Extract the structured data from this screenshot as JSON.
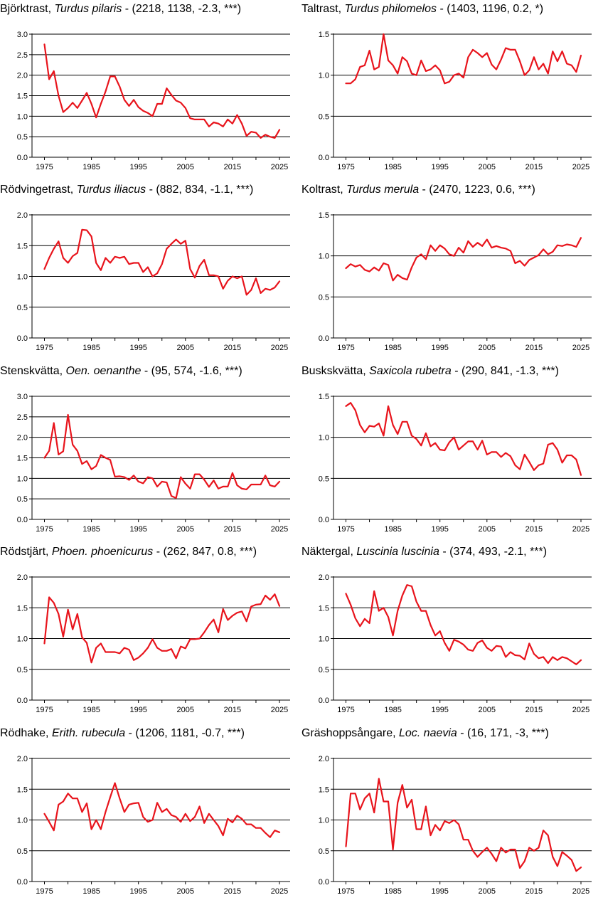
{
  "line_color": "#e8141c",
  "chart_data": [
    {
      "type": "line",
      "title_name": "Björktrast",
      "title_species": "Turdus pilaris",
      "title_stats": "- (2218, 1138, -2.3, ***)",
      "ylim": [
        0,
        3.0
      ],
      "yticks": [
        "0.0",
        "0.5",
        "1.0",
        "1.5",
        "2.0",
        "2.5",
        "3.0"
      ],
      "xticks": [
        "1975",
        "1985",
        "1995",
        "2005",
        "2015",
        "2025"
      ],
      "grid": true,
      "x": [
        1975,
        1976,
        1977,
        1978,
        1979,
        1980,
        1981,
        1982,
        1983,
        1984,
        1985,
        1986,
        1987,
        1988,
        1989,
        1990,
        1991,
        1992,
        1993,
        1994,
        1995,
        1996,
        1997,
        1998,
        1999,
        2000,
        2001,
        2002,
        2003,
        2004,
        2005,
        2006,
        2007,
        2008,
        2009,
        2010,
        2011,
        2012,
        2013,
        2014,
        2015,
        2016,
        2017,
        2018,
        2019,
        2020,
        2021,
        2022,
        2023,
        2024,
        2025
      ],
      "values": [
        2.75,
        1.9,
        2.1,
        1.5,
        1.1,
        1.2,
        1.33,
        1.2,
        1.38,
        1.57,
        1.3,
        0.97,
        1.3,
        1.6,
        1.97,
        1.97,
        1.72,
        1.4,
        1.25,
        1.4,
        1.22,
        1.13,
        1.08,
        1.0,
        1.3,
        1.3,
        1.68,
        1.52,
        1.38,
        1.33,
        1.2,
        0.95,
        0.92,
        0.92,
        0.92,
        0.75,
        0.85,
        0.82,
        0.75,
        0.92,
        0.82,
        1.03,
        0.82,
        0.52,
        0.62,
        0.6,
        0.47,
        0.55,
        0.5,
        0.47,
        0.67
      ]
    },
    {
      "type": "line",
      "title_name": "Taltrast",
      "title_species": "Turdus philomelos",
      "title_stats": "- (1403, 1196, 0.2, *)",
      "ylim": [
        0,
        1.5
      ],
      "yticks": [
        "0.0",
        "0.5",
        "1.0",
        "1.5"
      ],
      "xticks": [
        "1975",
        "1985",
        "1995",
        "2005",
        "2015",
        "2025"
      ],
      "grid": true,
      "x": [
        1975,
        1976,
        1977,
        1978,
        1979,
        1980,
        1981,
        1982,
        1983,
        1984,
        1985,
        1986,
        1987,
        1988,
        1989,
        1990,
        1991,
        1992,
        1993,
        1994,
        1995,
        1996,
        1997,
        1998,
        1999,
        2000,
        2001,
        2002,
        2003,
        2004,
        2005,
        2006,
        2007,
        2008,
        2009,
        2010,
        2011,
        2012,
        2013,
        2014,
        2015,
        2016,
        2017,
        2018,
        2019,
        2020,
        2021,
        2022,
        2023,
        2024,
        2025
      ],
      "values": [
        0.9,
        0.9,
        0.95,
        1.1,
        1.12,
        1.3,
        1.07,
        1.1,
        1.5,
        1.18,
        1.12,
        1.02,
        1.22,
        1.17,
        1.02,
        1.0,
        1.18,
        1.05,
        1.07,
        1.12,
        1.06,
        0.9,
        0.92,
        1.0,
        1.02,
        0.97,
        1.22,
        1.31,
        1.27,
        1.22,
        1.27,
        1.13,
        1.07,
        1.19,
        1.33,
        1.31,
        1.31,
        1.17,
        1.0,
        1.06,
        1.22,
        1.07,
        1.14,
        1.02,
        1.29,
        1.17,
        1.29,
        1.14,
        1.12,
        1.04,
        1.24
      ]
    },
    {
      "type": "line",
      "title_name": "Rödvingetrast",
      "title_species": "Turdus iliacus",
      "title_stats": "- (882, 834, -1.1, ***)",
      "ylim": [
        0,
        2.0
      ],
      "yticks": [
        "0.0",
        "0.5",
        "1.0",
        "1.5",
        "2.0"
      ],
      "xticks": [
        "1975",
        "1985",
        "1995",
        "2005",
        "2015",
        "2025"
      ],
      "grid": true,
      "x": [
        1975,
        1976,
        1977,
        1978,
        1979,
        1980,
        1981,
        1982,
        1983,
        1984,
        1985,
        1986,
        1987,
        1988,
        1989,
        1990,
        1991,
        1992,
        1993,
        1994,
        1995,
        1996,
        1997,
        1998,
        1999,
        2000,
        2001,
        2002,
        2003,
        2004,
        2005,
        2006,
        2007,
        2008,
        2009,
        2010,
        2011,
        2012,
        2013,
        2014,
        2015,
        2016,
        2017,
        2018,
        2019,
        2020,
        2021,
        2022,
        2023,
        2024,
        2025
      ],
      "values": [
        1.12,
        1.3,
        1.45,
        1.57,
        1.3,
        1.22,
        1.33,
        1.38,
        1.76,
        1.75,
        1.65,
        1.22,
        1.1,
        1.3,
        1.22,
        1.32,
        1.3,
        1.32,
        1.2,
        1.22,
        1.22,
        1.07,
        1.15,
        1.0,
        1.05,
        1.2,
        1.45,
        1.53,
        1.6,
        1.53,
        1.58,
        1.12,
        0.98,
        1.17,
        1.27,
        1.02,
        1.02,
        1.0,
        0.8,
        0.93,
        1.0,
        0.97,
        1.0,
        0.7,
        0.78,
        0.97,
        0.73,
        0.8,
        0.78,
        0.82,
        0.92
      ]
    },
    {
      "type": "line",
      "title_name": "Koltrast",
      "title_species": "Turdus merula",
      "title_stats": "- (2470, 1223, 0.6, ***)",
      "ylim": [
        0,
        1.5
      ],
      "yticks": [
        "0.0",
        "0.5",
        "1.0",
        "1.5"
      ],
      "xticks": [
        "1975",
        "1985",
        "1995",
        "2005",
        "2015",
        "2025"
      ],
      "grid": true,
      "x": [
        1975,
        1976,
        1977,
        1978,
        1979,
        1980,
        1981,
        1982,
        1983,
        1984,
        1985,
        1986,
        1987,
        1988,
        1989,
        1990,
        1991,
        1992,
        1993,
        1994,
        1995,
        1996,
        1997,
        1998,
        1999,
        2000,
        2001,
        2002,
        2003,
        2004,
        2005,
        2006,
        2007,
        2008,
        2009,
        2010,
        2011,
        2012,
        2013,
        2014,
        2015,
        2016,
        2017,
        2018,
        2019,
        2020,
        2021,
        2022,
        2023,
        2024,
        2025
      ],
      "values": [
        0.85,
        0.9,
        0.87,
        0.89,
        0.83,
        0.81,
        0.86,
        0.82,
        0.91,
        0.89,
        0.7,
        0.77,
        0.73,
        0.71,
        0.86,
        0.98,
        1.02,
        0.96,
        1.13,
        1.06,
        1.13,
        1.09,
        1.02,
        1.0,
        1.1,
        1.04,
        1.18,
        1.11,
        1.16,
        1.12,
        1.2,
        1.1,
        1.12,
        1.1,
        1.09,
        1.06,
        0.91,
        0.94,
        0.88,
        0.95,
        0.98,
        1.01,
        1.08,
        1.02,
        1.05,
        1.13,
        1.12,
        1.14,
        1.13,
        1.11,
        1.22
      ]
    },
    {
      "type": "line",
      "title_name": "Stenskvätta",
      "title_species": "Oen. oenanthe",
      "title_stats": "- (95, 574, -1.6, ***)",
      "ylim": [
        0,
        3.0
      ],
      "yticks": [
        "0.0",
        "0.5",
        "1.0",
        "1.5",
        "2.0",
        "2.5",
        "3.0"
      ],
      "xticks": [
        "1975",
        "1985",
        "1995",
        "2005",
        "2015",
        "2025"
      ],
      "grid": true,
      "x": [
        1975,
        1976,
        1977,
        1978,
        1979,
        1980,
        1981,
        1982,
        1983,
        1984,
        1985,
        1986,
        1987,
        1988,
        1989,
        1990,
        1991,
        1992,
        1993,
        1994,
        1995,
        1996,
        1997,
        1998,
        1999,
        2000,
        2001,
        2002,
        2003,
        2004,
        2005,
        2006,
        2007,
        2008,
        2009,
        2010,
        2011,
        2012,
        2013,
        2014,
        2015,
        2016,
        2017,
        2018,
        2019,
        2020,
        2021,
        2022,
        2023,
        2024,
        2025
      ],
      "values": [
        1.5,
        1.67,
        2.35,
        1.58,
        1.66,
        2.55,
        1.82,
        1.67,
        1.35,
        1.42,
        1.22,
        1.3,
        1.57,
        1.5,
        1.45,
        1.04,
        1.05,
        1.03,
        0.96,
        1.07,
        0.92,
        0.88,
        1.03,
        1.0,
        0.8,
        0.92,
        0.9,
        0.57,
        0.52,
        1.03,
        0.87,
        0.75,
        1.1,
        1.1,
        0.97,
        0.79,
        0.95,
        0.75,
        0.8,
        0.8,
        1.13,
        0.83,
        0.75,
        0.73,
        0.85,
        0.85,
        0.85,
        1.07,
        0.83,
        0.8,
        0.92
      ]
    },
    {
      "type": "line",
      "title_name": "Buskskvätta",
      "title_species": "Saxicola rubetra",
      "title_stats": "- (290, 841, -1.3, ***)",
      "ylim": [
        0,
        1.5
      ],
      "yticks": [
        "0.0",
        "0.5",
        "1.0",
        "1.5"
      ],
      "xticks": [
        "1975",
        "1985",
        "1995",
        "2005",
        "2015",
        "2025"
      ],
      "grid": true,
      "x": [
        1975,
        1976,
        1977,
        1978,
        1979,
        1980,
        1981,
        1982,
        1983,
        1984,
        1985,
        1986,
        1987,
        1988,
        1989,
        1990,
        1991,
        1992,
        1993,
        1994,
        1995,
        1996,
        1997,
        1998,
        1999,
        2000,
        2001,
        2002,
        2003,
        2004,
        2005,
        2006,
        2007,
        2008,
        2009,
        2010,
        2011,
        2012,
        2013,
        2014,
        2015,
        2016,
        2017,
        2018,
        2019,
        2020,
        2021,
        2022,
        2023,
        2024,
        2025
      ],
      "values": [
        1.38,
        1.42,
        1.33,
        1.15,
        1.06,
        1.14,
        1.13,
        1.17,
        1.02,
        1.38,
        1.15,
        1.04,
        1.19,
        1.19,
        1.02,
        0.98,
        0.9,
        1.05,
        0.89,
        0.93,
        0.85,
        0.84,
        0.94,
        1.0,
        0.85,
        0.9,
        0.95,
        0.95,
        0.85,
        0.96,
        0.79,
        0.82,
        0.82,
        0.76,
        0.81,
        0.77,
        0.66,
        0.61,
        0.79,
        0.7,
        0.6,
        0.66,
        0.68,
        0.91,
        0.93,
        0.85,
        0.69,
        0.78,
        0.78,
        0.73,
        0.54
      ]
    },
    {
      "type": "line",
      "title_name": "Rödstjärt",
      "title_species": "Phoen. phoenicurus",
      "title_stats": "- (262, 847, 0.8, ***)",
      "ylim": [
        0,
        2.0
      ],
      "yticks": [
        "0.0",
        "0.5",
        "1.0",
        "1.5",
        "2.0"
      ],
      "xticks": [
        "1975",
        "1985",
        "1995",
        "2005",
        "2015",
        "2025"
      ],
      "grid": true,
      "x": [
        1975,
        1976,
        1977,
        1978,
        1979,
        1980,
        1981,
        1982,
        1983,
        1984,
        1985,
        1986,
        1987,
        1988,
        1989,
        1990,
        1991,
        1992,
        1993,
        1994,
        1995,
        1996,
        1997,
        1998,
        1999,
        2000,
        2001,
        2002,
        2003,
        2004,
        2005,
        2006,
        2007,
        2008,
        2009,
        2010,
        2011,
        2012,
        2013,
        2014,
        2015,
        2016,
        2017,
        2018,
        2019,
        2020,
        2021,
        2022,
        2023,
        2024,
        2025
      ],
      "values": [
        0.92,
        1.67,
        1.58,
        1.4,
        1.03,
        1.47,
        1.15,
        1.4,
        1.02,
        0.93,
        0.61,
        0.85,
        0.92,
        0.78,
        0.78,
        0.78,
        0.76,
        0.85,
        0.82,
        0.65,
        0.69,
        0.76,
        0.85,
        0.99,
        0.85,
        0.8,
        0.8,
        0.83,
        0.68,
        0.87,
        0.84,
        0.99,
        0.99,
        1.0,
        1.1,
        1.22,
        1.31,
        1.1,
        1.48,
        1.3,
        1.37,
        1.42,
        1.44,
        1.28,
        1.52,
        1.55,
        1.56,
        1.7,
        1.63,
        1.72,
        1.53
      ]
    },
    {
      "type": "line",
      "title_name": "Näktergal",
      "title_species": "Luscinia luscinia",
      "title_stats": "- (374, 493, -2.1, ***)",
      "ylim": [
        0,
        2.0
      ],
      "yticks": [
        "0.0",
        "0.5",
        "1.0",
        "1.5",
        "2.0"
      ],
      "xticks": [
        "1975",
        "1985",
        "1995",
        "2005",
        "2015",
        "2025"
      ],
      "grid": true,
      "x": [
        1975,
        1976,
        1977,
        1978,
        1979,
        1980,
        1981,
        1982,
        1983,
        1984,
        1985,
        1986,
        1987,
        1988,
        1989,
        1990,
        1991,
        1992,
        1993,
        1994,
        1995,
        1996,
        1997,
        1998,
        1999,
        2000,
        2001,
        2002,
        2003,
        2004,
        2005,
        2006,
        2007,
        2008,
        2009,
        2010,
        2011,
        2012,
        2013,
        2014,
        2015,
        2016,
        2017,
        2018,
        2019,
        2020,
        2021,
        2022,
        2023,
        2024,
        2025
      ],
      "values": [
        1.73,
        1.55,
        1.33,
        1.2,
        1.32,
        1.25,
        1.77,
        1.45,
        1.5,
        1.35,
        1.05,
        1.45,
        1.7,
        1.87,
        1.85,
        1.6,
        1.45,
        1.45,
        1.22,
        1.05,
        1.12,
        0.93,
        0.8,
        0.98,
        0.95,
        0.9,
        0.82,
        0.8,
        0.93,
        0.97,
        0.85,
        0.8,
        0.88,
        0.87,
        0.7,
        0.78,
        0.73,
        0.72,
        0.66,
        0.92,
        0.75,
        0.68,
        0.7,
        0.6,
        0.7,
        0.65,
        0.7,
        0.68,
        0.63,
        0.58,
        0.65
      ]
    },
    {
      "type": "line",
      "title_name": "Rödhake",
      "title_species": "Erith. rubecula",
      "title_stats": "- (1206, 1181, -0.7, ***)",
      "ylim": [
        0,
        2.0
      ],
      "yticks": [
        "0.0",
        "0.5",
        "1.0",
        "1.5",
        "2.0"
      ],
      "xticks": [
        "1975",
        "1985",
        "1995",
        "2005",
        "2015",
        "2025"
      ],
      "grid": true,
      "x": [
        1975,
        1976,
        1977,
        1978,
        1979,
        1980,
        1981,
        1982,
        1983,
        1984,
        1985,
        1986,
        1987,
        1988,
        1989,
        1990,
        1991,
        1992,
        1993,
        1994,
        1995,
        1996,
        1997,
        1998,
        1999,
        2000,
        2001,
        2002,
        2003,
        2004,
        2005,
        2006,
        2007,
        2008,
        2009,
        2010,
        2011,
        2012,
        2013,
        2014,
        2015,
        2016,
        2017,
        2018,
        2019,
        2020,
        2021,
        2022,
        2023,
        2024,
        2025
      ],
      "values": [
        1.1,
        0.97,
        0.83,
        1.25,
        1.3,
        1.43,
        1.35,
        1.35,
        1.13,
        1.27,
        0.85,
        1.0,
        0.85,
        1.13,
        1.37,
        1.6,
        1.35,
        1.13,
        1.25,
        1.27,
        1.28,
        1.05,
        0.97,
        1.0,
        1.28,
        1.13,
        1.18,
        1.08,
        1.05,
        0.97,
        1.1,
        0.98,
        1.05,
        1.22,
        0.95,
        1.1,
        1.0,
        0.9,
        0.75,
        1.02,
        0.96,
        1.07,
        1.02,
        0.93,
        0.93,
        0.87,
        0.87,
        0.79,
        0.72,
        0.83,
        0.8
      ]
    },
    {
      "type": "line",
      "title_name": "Gräshoppsångare",
      "title_species": "Loc. naevia",
      "title_stats": "- (16, 171, -3, ***)",
      "ylim": [
        0,
        2.0
      ],
      "yticks": [
        "0.0",
        "0.5",
        "1.0",
        "1.5",
        "2.0"
      ],
      "xticks": [
        "1975",
        "1985",
        "1995",
        "2005",
        "2015",
        "2025"
      ],
      "grid": true,
      "x": [
        1975,
        1976,
        1977,
        1978,
        1979,
        1980,
        1981,
        1982,
        1983,
        1984,
        1985,
        1986,
        1987,
        1988,
        1989,
        1990,
        1991,
        1992,
        1993,
        1994,
        1995,
        1996,
        1997,
        1998,
        1999,
        2000,
        2001,
        2002,
        2003,
        2004,
        2005,
        2006,
        2007,
        2008,
        2009,
        2010,
        2011,
        2012,
        2013,
        2014,
        2015,
        2016,
        2017,
        2018,
        2019,
        2020,
        2021,
        2022,
        2023,
        2024,
        2025
      ],
      "values": [
        0.57,
        1.43,
        1.43,
        1.17,
        1.35,
        1.43,
        1.12,
        1.67,
        1.3,
        1.3,
        0.52,
        1.28,
        1.57,
        1.2,
        1.33,
        0.85,
        0.85,
        1.22,
        0.75,
        0.92,
        0.83,
        0.98,
        0.95,
        1.0,
        0.93,
        0.68,
        0.68,
        0.5,
        0.4,
        0.48,
        0.55,
        0.45,
        0.33,
        0.55,
        0.47,
        0.52,
        0.52,
        0.22,
        0.33,
        0.55,
        0.5,
        0.55,
        0.83,
        0.75,
        0.4,
        0.25,
        0.48,
        0.42,
        0.35,
        0.17,
        0.23
      ]
    }
  ]
}
